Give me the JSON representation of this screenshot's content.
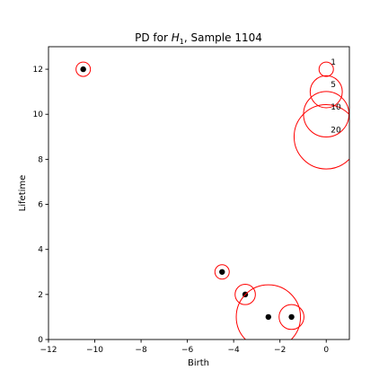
{
  "chart_data": {
    "type": "scatter",
    "title": {
      "prefix": "PD for ",
      "math_base": "H",
      "math_sub": "1",
      "suffix": ", Sample 1104"
    },
    "xlabel": "Birth",
    "ylabel": "Lifetime",
    "xlim": [
      -12,
      1
    ],
    "ylim": [
      0,
      13
    ],
    "xticks": [
      -12,
      -10,
      -8,
      -6,
      -4,
      -2,
      0
    ],
    "xtick_labels": [
      "−12",
      "−10",
      "−8",
      "−6",
      "−4",
      "−2",
      "0"
    ],
    "yticks": [
      0,
      2,
      4,
      6,
      8,
      10,
      12
    ],
    "ytick_labels": [
      "0",
      "2",
      "4",
      "6",
      "8",
      "10",
      "12"
    ],
    "grid": false,
    "point_color": "#000000",
    "circle_color": "#ff0000",
    "points": [
      {
        "birth": -10.5,
        "lifetime": 12,
        "multiplicity": 1
      },
      {
        "birth": -4.5,
        "lifetime": 3,
        "multiplicity": 1
      },
      {
        "birth": -3.5,
        "lifetime": 2,
        "multiplicity": 2
      },
      {
        "birth": -2.5,
        "lifetime": 1,
        "multiplicity": 20
      },
      {
        "birth": -1.5,
        "lifetime": 1,
        "multiplicity": 3
      }
    ],
    "size_legend": {
      "placement": "top-right",
      "items": [
        {
          "label": "1",
          "multiplicity": 1,
          "lifetime": 12
        },
        {
          "label": "5",
          "multiplicity": 5,
          "lifetime": 11
        },
        {
          "label": "10",
          "multiplicity": 10,
          "lifetime": 10
        },
        {
          "label": "20",
          "multiplicity": 20,
          "lifetime": 9
        }
      ]
    }
  }
}
